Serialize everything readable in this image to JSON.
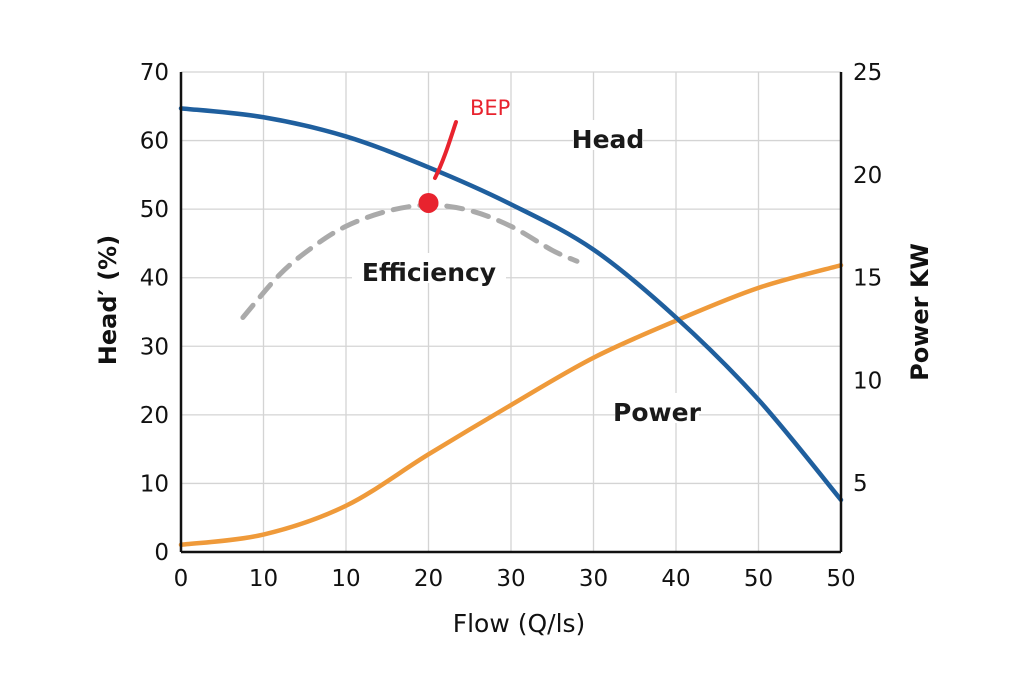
{
  "chart_data": {
    "type": "line",
    "xlabel": "Flow (Q/ls)",
    "ylabel_left": "Head′ (%)",
    "ylabel_right": "Power KW",
    "x_tick_labels": [
      "0",
      "10",
      "10",
      "20",
      "30",
      "30",
      "40",
      "50",
      "50"
    ],
    "y_left_ticks": [
      "0",
      "10",
      "20",
      "30",
      "40",
      "50",
      "60",
      "70"
    ],
    "y_right_ticks": [
      "5",
      "10",
      "15",
      "20",
      "25"
    ],
    "ylim_left": [
      0,
      70
    ],
    "ylim_right": [
      1.65,
      25
    ],
    "grid": true,
    "note_x": "x values are positions along the printed tick sequence (0 = first tick, 8 = last tick)",
    "series": [
      {
        "name": "Head",
        "axis": "left",
        "color": "#1f5f9e",
        "style": "solid",
        "x": [
          0,
          1,
          2,
          3,
          4,
          5,
          6,
          7,
          8
        ],
        "y": [
          64.7,
          63.4,
          60.6,
          56.1,
          50.7,
          44.1,
          34.2,
          22.2,
          7.6
        ]
      },
      {
        "name": "Power",
        "axis": "right",
        "color": "#ef9a3a",
        "style": "solid",
        "x": [
          0,
          1,
          2,
          3,
          4,
          5,
          6,
          7,
          8
        ],
        "y": [
          2.0,
          2.5,
          3.9,
          6.4,
          8.8,
          11.1,
          12.9,
          14.5,
          15.6
        ]
      },
      {
        "name": "Efficiency",
        "axis": "left",
        "color": "#aaaaaa",
        "style": "dashed",
        "x": [
          0.75,
          1.2,
          1.6,
          2,
          2.5,
          3,
          3.5,
          4,
          4.5,
          4.8
        ],
        "y": [
          34.2,
          40.5,
          44.5,
          47.5,
          49.7,
          50.6,
          49.8,
          47.5,
          44,
          42.4
        ]
      }
    ],
    "annotations": [
      {
        "text": "BEP",
        "color": "#e8232e",
        "x": 3,
        "y": 50.9
      }
    ]
  }
}
